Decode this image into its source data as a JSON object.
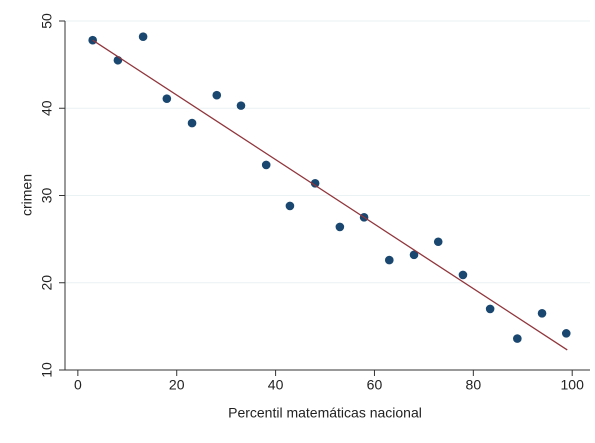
{
  "chart_data": {
    "type": "scatter",
    "xlabel": "Percentil matemáticas nacional",
    "ylabel": "crimen",
    "xlim": [
      -2.6,
      103.6
    ],
    "ylim": [
      10,
      50
    ],
    "xticks": [
      0,
      20,
      40,
      60,
      80,
      100
    ],
    "yticks": [
      10,
      20,
      30,
      40,
      50
    ],
    "grid": true,
    "series": [
      {
        "style": "markers",
        "color": "#1a476f",
        "x": [
          3.0,
          8.1,
          13.2,
          18.0,
          23.1,
          28.1,
          33.0,
          38.1,
          42.9,
          48.0,
          53.0,
          57.9,
          63.0,
          68.0,
          72.9,
          77.9,
          83.4,
          88.9,
          93.9,
          98.8
        ],
        "values": [
          47.8,
          45.5,
          48.2,
          41.1,
          38.3,
          41.5,
          40.3,
          33.5,
          28.8,
          31.4,
          26.4,
          27.5,
          22.6,
          23.2,
          24.7,
          20.9,
          17.0,
          13.6,
          16.5,
          14.2
        ]
      },
      {
        "style": "line",
        "color": "#90353b",
        "x": [
          3.0,
          99.0
        ],
        "values": [
          47.8,
          12.3
        ]
      }
    ]
  }
}
